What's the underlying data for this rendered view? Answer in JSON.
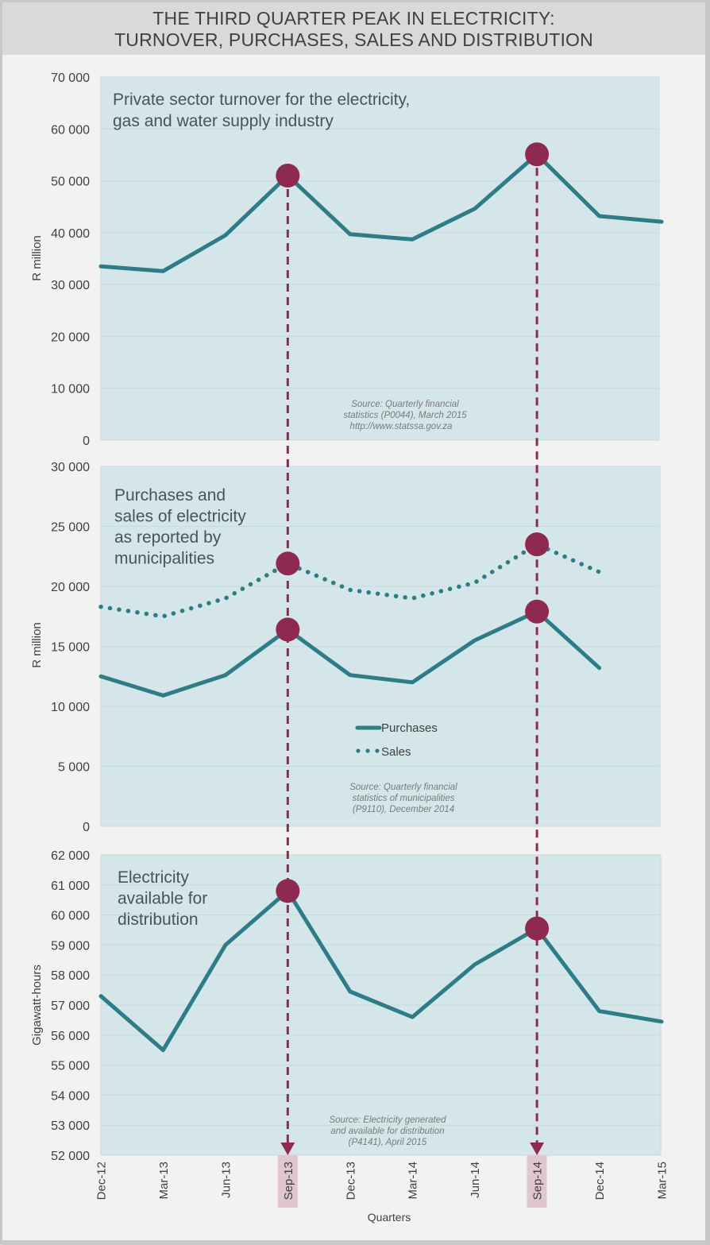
{
  "title": {
    "line1": "THE THIRD QUARTER PEAK IN ELECTRICITY:",
    "line2": "TURNOVER, PURCHASES, SALES AND DISTRIBUTION"
  },
  "colors": {
    "series": "#2e7d86",
    "highlight": "#8e2a50",
    "plot_bg": "#d4e6e9",
    "highlight_band": "#e2c6cf"
  },
  "chart_data": [
    {
      "type": "line",
      "title": "Private sector turnover for the electricity, gas and water supply industry",
      "title_lines": [
        "Private sector turnover for the electricity,",
        "gas and water supply industry"
      ],
      "ylabel": "R million",
      "ylim": [
        0,
        70000
      ],
      "yticks": [
        0,
        10000,
        20000,
        30000,
        40000,
        50000,
        60000,
        70000
      ],
      "ytick_labels": [
        "0",
        "10 000",
        "20 000",
        "30 000",
        "40 000",
        "50 000",
        "60 000",
        "70 000"
      ],
      "categories": [
        "Dec-12",
        "Mar-13",
        "Jun-13",
        "Sep-13",
        "Dec-13",
        "Mar-14",
        "Jun-14",
        "Sep-14",
        "Dec-14",
        "Mar-15"
      ],
      "series": [
        {
          "name": "Turnover",
          "style": "solid",
          "values": [
            33500,
            32600,
            39500,
            51000,
            39700,
            38700,
            44600,
            55100,
            43200,
            42100
          ]
        }
      ],
      "highlights": [
        {
          "series": 0,
          "category": "Sep-13"
        },
        {
          "series": 0,
          "category": "Sep-14"
        }
      ],
      "source": [
        "Source: Quarterly financial",
        "statistics (P0044), March 2015",
        "http://www.statssa.gov.za"
      ],
      "grid": true
    },
    {
      "type": "line",
      "title": "Purchases and sales of electricity as reported by municipalities",
      "title_lines": [
        "Purchases and",
        "sales of electricity",
        "as reported by",
        "municipalities"
      ],
      "ylabel": "R million",
      "ylim": [
        0,
        30000
      ],
      "yticks": [
        0,
        5000,
        10000,
        15000,
        20000,
        25000,
        30000
      ],
      "ytick_labels": [
        "0",
        "5 000",
        "10 000",
        "15 000",
        "20 000",
        "25 000",
        "30 000"
      ],
      "categories": [
        "Dec-12",
        "Mar-13",
        "Jun-13",
        "Sep-13",
        "Dec-13",
        "Mar-14",
        "Jun-14",
        "Sep-14",
        "Dec-14",
        "Mar-15"
      ],
      "series": [
        {
          "name": "Purchases",
          "style": "solid",
          "values": [
            12500,
            10900,
            12600,
            16400,
            12600,
            12000,
            15500,
            17900,
            13200,
            null
          ]
        },
        {
          "name": "Sales",
          "style": "dotted",
          "values": [
            18300,
            17500,
            19000,
            21900,
            19700,
            19000,
            20300,
            23500,
            21200,
            null
          ]
        }
      ],
      "highlights": [
        {
          "series": 0,
          "category": "Sep-13"
        },
        {
          "series": 1,
          "category": "Sep-13"
        },
        {
          "series": 0,
          "category": "Sep-14"
        },
        {
          "series": 1,
          "category": "Sep-14"
        }
      ],
      "legend": [
        "Purchases",
        "Sales"
      ],
      "legend_position": "center-bottom",
      "source": [
        "Source: Quarterly financial",
        "statistics of municipalities",
        "(P9110), December 2014"
      ],
      "grid": true
    },
    {
      "type": "line",
      "title": "Electricity available for distribution",
      "title_lines": [
        "Electricity",
        "available for",
        "distribution"
      ],
      "ylabel": "Gigawatt-hours",
      "xlabel": "Quarters",
      "ylim": [
        52000,
        62000
      ],
      "yticks": [
        52000,
        53000,
        54000,
        55000,
        56000,
        57000,
        58000,
        59000,
        60000,
        61000,
        62000
      ],
      "ytick_labels": [
        "52 000",
        "53 000",
        "54 000",
        "55 000",
        "56 000",
        "57 000",
        "58 000",
        "59 000",
        "60 000",
        "61 000",
        "62 000"
      ],
      "categories": [
        "Dec-12",
        "Mar-13",
        "Jun-13",
        "Sep-13",
        "Dec-13",
        "Mar-14",
        "Jun-14",
        "Sep-14",
        "Dec-14",
        "Mar-15"
      ],
      "series": [
        {
          "name": "Electricity available",
          "style": "solid",
          "values": [
            57300,
            55500,
            59000,
            60800,
            57450,
            56600,
            58350,
            59550,
            56800,
            56450
          ]
        }
      ],
      "highlights": [
        {
          "series": 0,
          "category": "Sep-13"
        },
        {
          "series": 0,
          "category": "Sep-14"
        }
      ],
      "highlighted_categories": [
        "Sep-13",
        "Sep-14"
      ],
      "source": [
        "Source: Electricity generated",
        "and available for distribution",
        "(P4141), April 2015"
      ],
      "grid": true
    }
  ]
}
